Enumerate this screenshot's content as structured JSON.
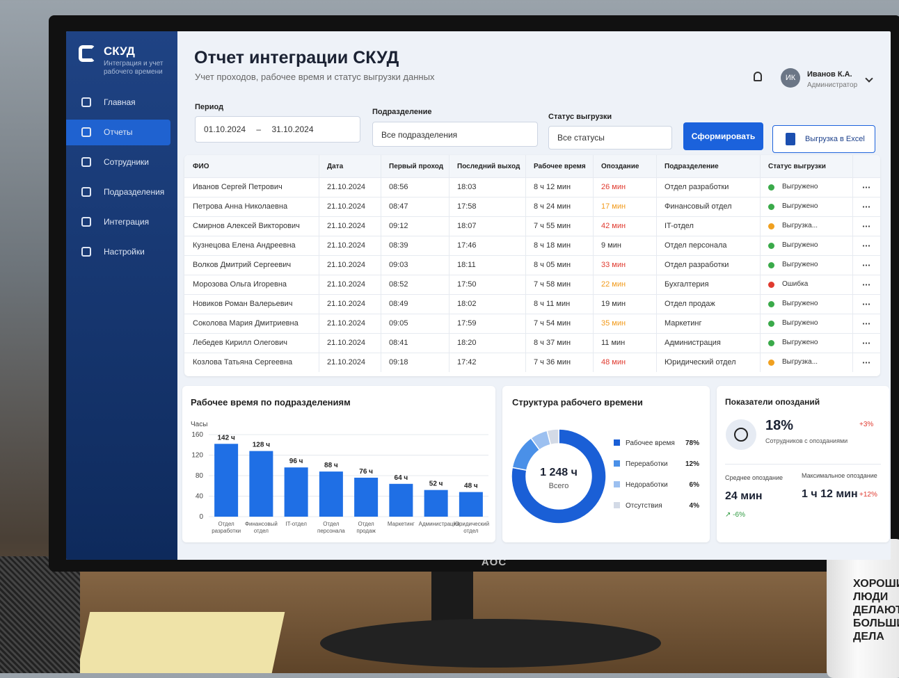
{
  "sidebar": {
    "logo_title": "СКУД",
    "logo_subtitle": "Интеграция и учет рабочего времени",
    "menu": [
      "Главная",
      "Отчеты",
      "Сотрудники",
      "Подразделения",
      "Интеграция",
      "Настройки"
    ],
    "active": 1
  },
  "header": {
    "title": "Отчет интеграции СКУД",
    "subtitle": "Учет проходов, рабочее время и статус выгрузки данных",
    "user_initials": "ИК",
    "user_name": "Иванов К.А.",
    "user_role": "Администратор"
  },
  "filters": {
    "period_label": "Период",
    "date_from": "01.10.2024",
    "date_sep": "–",
    "date_to": "31.10.2024",
    "department_label": "Подразделение",
    "department_value": "Все подразделения",
    "status_label": "Статус выгрузки",
    "status_value": "Все статусы",
    "submit": "Сформировать",
    "export": "Выгрузка в Excel"
  },
  "table": {
    "columns": [
      "ФИО",
      "Дата",
      "Первый проход",
      "Последний выход",
      "Рабочее время",
      "Опоздание",
      "Подразделение",
      "Статус выгрузки"
    ],
    "rows": [
      [
        "Иванов Сергей Петрович",
        "21.10.2024",
        "08:56",
        "18:03",
        "8 ч 12 мин",
        "26 мин",
        "Отдел разработки",
        "Выгружено"
      ],
      [
        "Петрова Анна Николаевна",
        "21.10.2024",
        "08:47",
        "17:58",
        "8 ч 24 мин",
        "17 мин",
        "Финансовый отдел",
        "Выгружено"
      ],
      [
        "Смирнов Алексей Викторович",
        "21.10.2024",
        "09:12",
        "18:07",
        "7 ч 55 мин",
        "42 мин",
        "IT-отдел",
        "Выгрузка..."
      ],
      [
        "Кузнецова Елена Андреевна",
        "21.10.2024",
        "08:39",
        "17:46",
        "8 ч 18 мин",
        "9 мин",
        "Отдел персонала",
        "Выгружено"
      ],
      [
        "Волков Дмитрий Сергеевич",
        "21.10.2024",
        "09:03",
        "18:11",
        "8 ч 05 мин",
        "33 мин",
        "Отдел разработки",
        "Выгружено"
      ],
      [
        "Морозова Ольга Игоревна",
        "21.10.2024",
        "08:52",
        "17:50",
        "7 ч 58 мин",
        "22 мин",
        "Бухгалтерия",
        "Ошибка"
      ],
      [
        "Новиков Роман Валерьевич",
        "21.10.2024",
        "08:49",
        "18:02",
        "8 ч 11 мин",
        "19 мин",
        "Отдел продаж",
        "Выгружено"
      ],
      [
        "Соколова Мария Дмитриевна",
        "21.10.2024",
        "09:05",
        "17:59",
        "7 ч 54 мин",
        "35 мин",
        "Маркетинг",
        "Выгружено"
      ],
      [
        "Лебедев Кирилл Олегович",
        "21.10.2024",
        "08:41",
        "18:20",
        "8 ч 37 мин",
        "11 мин",
        "Администрация",
        "Выгружено"
      ],
      [
        "Козлова Татьяна Сергеевна",
        "21.10.2024",
        "09:18",
        "17:42",
        "7 ч 36 мин",
        "48 мин",
        "Юридический отдел",
        "Выгрузка..."
      ]
    ],
    "late_colors": [
      "#e03a2f",
      "#f29a1a",
      "#e03a2f",
      "#333333",
      "#e03a2f",
      "#f29a1a",
      "#333333",
      "#f29a1a",
      "#333333",
      "#e03a2f"
    ],
    "status_colors": [
      "#3aaa4a",
      "#3aaa4a",
      "#f0a020",
      "#3aaa4a",
      "#3aaa4a",
      "#e03a2f",
      "#3aaa4a",
      "#3aaa4a",
      "#3aaa4a",
      "#f0a020"
    ]
  },
  "chart_data": [
    {
      "type": "bar",
      "title": "Рабочее время по подразделениям",
      "y_label": "Часы",
      "categories": [
        "Отдел разработки",
        "Финансовый отдел",
        "IT-отдел",
        "Отдел персонала",
        "Отдел продаж",
        "Маркетинг",
        "Администрация",
        "Юридический отдел"
      ],
      "values": [
        142,
        128,
        96,
        88,
        76,
        64,
        52,
        48
      ],
      "value_labels": [
        "142 ч",
        "128 ч",
        "96 ч",
        "88 ч",
        "76 ч",
        "64 ч",
        "52 ч",
        "48 ч"
      ],
      "color": "#1f6fe5",
      "ylim": [
        0,
        160
      ],
      "yticks": [
        0,
        40,
        80,
        120,
        160
      ],
      "grid": true
    },
    {
      "type": "pie",
      "title": "Структура рабочего времени",
      "categories": [
        "Рабочее время",
        "Переработки",
        "Недоработки",
        "Отсутствия"
      ],
      "values": [
        78,
        12,
        6,
        4
      ],
      "value_labels": [
        "78%",
        "12%",
        "6%",
        "4%"
      ],
      "colors": [
        "#1a5fd6",
        "#4a90e8",
        "#9cc0f0",
        "#d3dae6"
      ],
      "center_value": "1 248 ч",
      "center_label": "Всего"
    }
  ],
  "stats": {
    "title": "Показатели опозданий",
    "share": "18%",
    "share_change": "+3%",
    "share_label": "Сотрудников с опозданиями",
    "avg_label": "Среднее опоздание",
    "avg_value": "24 мин",
    "avg_change": "-6%",
    "max_label": "Максимальное опоздание",
    "max_value": "1 ч 12 мин",
    "max_change": "+12%"
  },
  "photo": {
    "monitor_brand": "AOC",
    "mug_text": [
      "ХОРОШИЕ",
      "ЛЮДИ",
      "ДЕЛАЮТ",
      "БОЛЬШИЕ",
      "ДЕЛА"
    ]
  }
}
